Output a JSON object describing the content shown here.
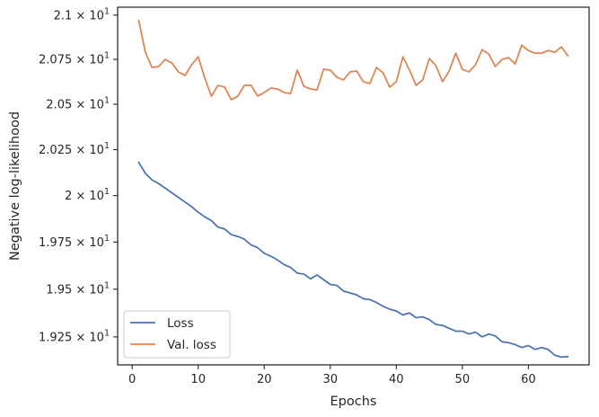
{
  "chart_data": {
    "type": "line",
    "title": "",
    "xlabel": "Epochs",
    "ylabel": "Negative log-likelihood",
    "xlim": [
      -2.2,
      69.2
    ],
    "ylim": [
      19.105,
      21.045
    ],
    "yscale": "log",
    "grid": false,
    "legend_position": "lower-left",
    "x_ticks": [
      {
        "value": 0,
        "label": "0"
      },
      {
        "value": 10,
        "label": "10"
      },
      {
        "value": 20,
        "label": "20"
      },
      {
        "value": 30,
        "label": "30"
      },
      {
        "value": 40,
        "label": "40"
      },
      {
        "value": 50,
        "label": "50"
      },
      {
        "value": 60,
        "label": "60"
      }
    ],
    "y_ticks": [
      {
        "value": 19.25,
        "mantissa": "1.925"
      },
      {
        "value": 19.5,
        "mantissa": "1.95"
      },
      {
        "value": 19.75,
        "mantissa": "1.975"
      },
      {
        "value": 20.0,
        "mantissa": "2"
      },
      {
        "value": 20.25,
        "mantissa": "2.025"
      },
      {
        "value": 20.5,
        "mantissa": "2.05"
      },
      {
        "value": 20.75,
        "mantissa": "2.075"
      },
      {
        "value": 21.0,
        "mantissa": "2.1"
      }
    ],
    "y_tick_multiplier": "× 10",
    "y_tick_exponent": "1",
    "x": [
      1,
      2,
      3,
      4,
      5,
      6,
      7,
      8,
      9,
      10,
      11,
      12,
      13,
      14,
      15,
      16,
      17,
      18,
      19,
      20,
      21,
      22,
      23,
      24,
      25,
      26,
      27,
      28,
      29,
      30,
      31,
      32,
      33,
      34,
      35,
      36,
      37,
      38,
      39,
      40,
      41,
      42,
      43,
      44,
      45,
      46,
      47,
      48,
      49,
      50,
      51,
      52,
      53,
      54,
      55,
      56,
      57,
      58,
      59,
      60,
      61,
      62,
      63,
      64,
      65,
      66
    ],
    "series": [
      {
        "name": "Loss",
        "color": "#4c72b0",
        "values": [
          20.18,
          20.12,
          20.085,
          20.065,
          20.04,
          20.015,
          19.99,
          19.965,
          19.94,
          19.91,
          19.885,
          19.865,
          19.83,
          19.82,
          19.79,
          19.78,
          19.765,
          19.735,
          19.72,
          19.69,
          19.675,
          19.655,
          19.63,
          19.615,
          19.585,
          19.58,
          19.555,
          19.575,
          19.55,
          19.525,
          19.52,
          19.49,
          19.48,
          19.47,
          19.45,
          19.445,
          19.43,
          19.41,
          19.395,
          19.385,
          19.365,
          19.375,
          19.35,
          19.355,
          19.34,
          19.315,
          19.31,
          19.295,
          19.28,
          19.28,
          19.265,
          19.275,
          19.25,
          19.265,
          19.255,
          19.225,
          19.22,
          19.21,
          19.195,
          19.205,
          19.185,
          19.195,
          19.185,
          19.155,
          19.145,
          19.148
        ]
      },
      {
        "name": "Val. loss",
        "color": "#dd8452",
        "values": [
          20.97,
          20.79,
          20.705,
          20.71,
          20.75,
          20.73,
          20.68,
          20.66,
          20.72,
          20.765,
          20.645,
          20.545,
          20.605,
          20.595,
          20.525,
          20.545,
          20.605,
          20.605,
          20.545,
          20.565,
          20.59,
          20.585,
          20.565,
          20.56,
          20.69,
          20.6,
          20.585,
          20.58,
          20.695,
          20.69,
          20.65,
          20.635,
          20.68,
          20.685,
          20.625,
          20.615,
          20.705,
          20.675,
          20.595,
          20.625,
          20.765,
          20.69,
          20.605,
          20.635,
          20.755,
          20.715,
          20.625,
          20.685,
          20.785,
          20.695,
          20.68,
          20.72,
          20.805,
          20.78,
          20.71,
          20.75,
          20.76,
          20.725,
          20.83,
          20.8,
          20.785,
          20.785,
          20.8,
          20.79,
          20.82,
          20.77
        ]
      }
    ]
  }
}
